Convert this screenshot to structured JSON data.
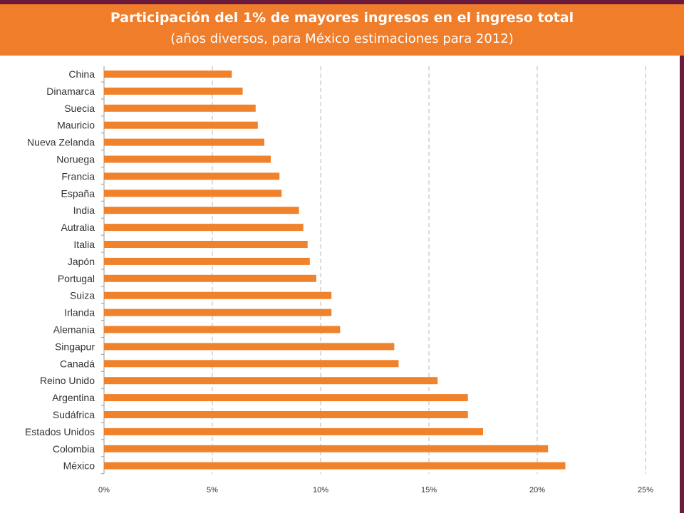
{
  "header": {
    "title": "Participación del 1% de mayores ingresos en el ingreso total",
    "subtitle": "(años diversos, para México estimaciones para 2012)"
  },
  "colors": {
    "bar": "#f0822b",
    "header": "#ef7d2a",
    "accent": "#6b1a3c",
    "grid": "#b8b8b8",
    "text": "#333333"
  },
  "chart_data": {
    "type": "bar",
    "orientation": "horizontal",
    "title": "Participación del 1% de mayores ingresos en el ingreso total",
    "subtitle": "(años diversos, para México estimaciones para 2012)",
    "categories": [
      "China",
      "Dinamarca",
      "Suecia",
      "Mauricio",
      "Nueva Zelanda",
      "Noruega",
      "Francia",
      "España",
      "India",
      "Autralia",
      "Italia",
      "Japón",
      "Portugal",
      "Suiza",
      "Irlanda",
      "Alemania",
      "Singapur",
      "Canadá",
      "Reino Unido",
      "Argentina",
      "Sudáfrica",
      "Estados Unidos",
      "Colombia",
      "México"
    ],
    "values": [
      5.9,
      6.4,
      7.0,
      7.1,
      7.4,
      7.7,
      8.1,
      8.2,
      9.0,
      9.2,
      9.4,
      9.5,
      9.8,
      10.5,
      10.5,
      10.9,
      13.4,
      13.6,
      15.4,
      16.8,
      16.8,
      17.5,
      20.5,
      21.3
    ],
    "xlim": [
      0,
      25
    ],
    "xticks": [
      0,
      5,
      10,
      15,
      20,
      25
    ],
    "xtick_labels": [
      "0%",
      "5%",
      "10%",
      "15%",
      "20%",
      "25%"
    ],
    "grid": "vertical dashed",
    "legend": "none"
  }
}
